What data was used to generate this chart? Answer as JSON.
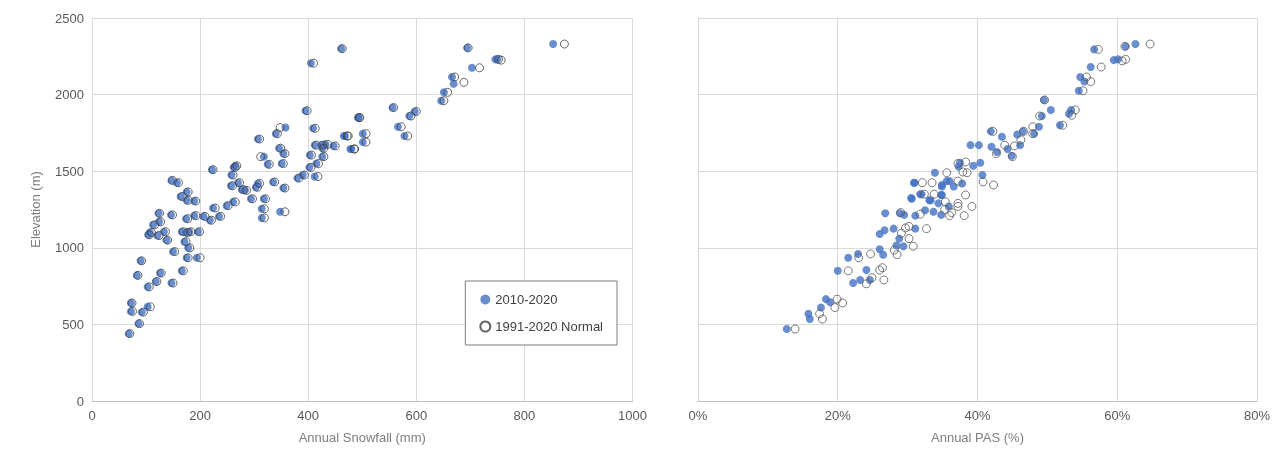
{
  "chart_data": [
    {
      "type": "scatter",
      "xlabel": "Annual Snowfall (mm)",
      "ylabel": "Elevation (m)",
      "xlim": [
        0,
        1000
      ],
      "xticks": [
        0,
        200,
        400,
        600,
        800,
        1000
      ],
      "ylim": [
        0,
        2500
      ],
      "yticks": [
        0,
        500,
        1000,
        1500,
        2000,
        2500
      ],
      "grid": true,
      "legend": "bottom right",
      "marker": "circle",
      "series": [
        {
          "name": "2010-2020",
          "color": "#4472c4",
          "x": [
            68,
            72,
            72,
            86,
            92,
            103,
            83,
            90,
            103,
            118,
            126,
            147,
            166,
            150,
            175,
            194,
            104,
            107,
            113,
            123,
            124,
            121,
            133,
            138,
            146,
            147,
            157,
            164,
            175,
            175,
            189,
            174,
            166,
            174,
            180,
            171,
            178,
            196,
            189,
            206,
            218,
            222,
            235,
            224,
            249,
            261,
            257,
            258,
            262,
            265,
            270,
            277,
            283,
            294,
            303,
            307,
            307,
            318,
            325,
            314,
            314,
            318,
            340,
            358,
            346,
            354,
            351,
            335,
            354,
            348,
            395,
            380,
            390,
            402,
            403,
            409,
            412,
            424,
            412,
            426,
            426,
            415,
            432,
            468,
            480,
            492,
            461,
            405,
            556,
            587,
            597,
            566,
            578,
            493,
            466,
            501,
            501,
            478,
            447,
            646,
            651,
            666,
            669,
            703,
            694,
            746,
            750,
            853
          ],
          "values": [
            440,
            640,
            585,
            505,
            580,
            615,
            820,
            915,
            745,
            780,
            835,
            770,
            850,
            975,
            935,
            935,
            1085,
            1100,
            1150,
            1225,
            1170,
            1080,
            1105,
            1050,
            1215,
            1440,
            1425,
            1335,
            1365,
            1310,
            1305,
            1190,
            1105,
            1100,
            1105,
            1040,
            1000,
            1105,
            1210,
            1205,
            1180,
            1510,
            1205,
            1260,
            1275,
            1300,
            1405,
            1475,
            1525,
            1535,
            1425,
            1380,
            1375,
            1320,
            1395,
            1420,
            1710,
            1595,
            1545,
            1255,
            1195,
            1320,
            1745,
            1785,
            1650,
            1615,
            1550,
            1430,
            1390,
            1235,
            1895,
            1455,
            1475,
            1525,
            1605,
            1780,
            1670,
            1670,
            1465,
            1650,
            1595,
            1550,
            1675,
            1730,
            1645,
            1850,
            2300,
            2205,
            1915,
            1860,
            1890,
            1790,
            1730,
            1850,
            1730,
            1745,
            1690,
            1645,
            1665,
            1960,
            2015,
            2115,
            2070,
            2175,
            2305,
            2230,
            2230,
            2330
          ]
        },
        {
          "name": "1991-2020 Normal",
          "color": "#404040",
          "x": [
            70,
            74,
            75,
            88,
            95,
            108,
            85,
            92,
            106,
            120,
            128,
            150,
            169,
            153,
            178,
            200,
            106,
            110,
            116,
            125,
            127,
            124,
            136,
            140,
            149,
            149,
            160,
            167,
            178,
            178,
            192,
            177,
            169,
            177,
            183,
            174,
            181,
            199,
            192,
            209,
            221,
            224,
            238,
            228,
            252,
            265,
            260,
            261,
            265,
            268,
            273,
            280,
            286,
            297,
            306,
            310,
            310,
            312,
            328,
            319,
            319,
            321,
            343,
            348,
            349,
            357,
            354,
            338,
            357,
            357,
            398,
            383,
            393,
            405,
            406,
            413,
            415,
            427,
            418,
            429,
            429,
            419,
            436,
            474,
            486,
            495,
            463,
            410,
            558,
            590,
            600,
            572,
            584,
            495,
            472,
            507,
            507,
            485,
            450,
            651,
            658,
            671,
            688,
            717,
            696,
            757,
            752,
            874
          ],
          "values": [
            440,
            640,
            585,
            505,
            580,
            615,
            820,
            915,
            745,
            780,
            835,
            770,
            850,
            975,
            935,
            935,
            1085,
            1100,
            1150,
            1225,
            1170,
            1080,
            1105,
            1050,
            1215,
            1440,
            1425,
            1335,
            1365,
            1310,
            1305,
            1190,
            1105,
            1100,
            1105,
            1040,
            1000,
            1105,
            1210,
            1205,
            1180,
            1510,
            1205,
            1260,
            1275,
            1300,
            1405,
            1475,
            1525,
            1535,
            1425,
            1380,
            1375,
            1320,
            1395,
            1420,
            1710,
            1595,
            1545,
            1255,
            1195,
            1320,
            1745,
            1785,
            1650,
            1615,
            1550,
            1430,
            1390,
            1235,
            1895,
            1455,
            1475,
            1525,
            1605,
            1780,
            1670,
            1670,
            1465,
            1650,
            1595,
            1550,
            1675,
            1730,
            1645,
            1850,
            2300,
            2205,
            1915,
            1860,
            1890,
            1790,
            1730,
            1850,
            1730,
            1745,
            1690,
            1645,
            1665,
            1960,
            2015,
            2115,
            2080,
            2175,
            2305,
            2225,
            2230,
            2330
          ]
        }
      ]
    },
    {
      "type": "scatter",
      "xlabel": "Annual PAS (%)",
      "xlim": [
        0,
        80
      ],
      "xticks": [
        {
          "value": 0,
          "label": "0%"
        },
        {
          "value": 20,
          "label": "20%"
        },
        {
          "value": 40,
          "label": "40%"
        },
        {
          "value": 60,
          "label": "60%"
        },
        {
          "value": 80,
          "label": "80%"
        }
      ],
      "ylim": [
        0,
        2500
      ],
      "yticks": [
        0,
        500,
        1000,
        1500,
        2000,
        2500
      ],
      "tick_labels": "x",
      "grid": true,
      "marker": "circle",
      "series": [
        {
          "color": "#4472c4",
          "x": [
            12.7,
            15.8,
            16.0,
            17.6,
            18.3,
            18.9,
            20.0,
            21.5,
            22.9,
            22.2,
            23.2,
            24.1,
            24.6,
            26.0,
            26.5,
            26.0,
            26.8,
            26.7,
            28.0,
            28.8,
            29.4,
            28.4,
            29.5,
            30.9,
            30.5,
            31.1,
            31.1,
            31.8,
            32.5,
            33.7,
            33.1,
            34.4,
            34.9,
            34.8,
            35.9,
            34.9,
            35.6,
            36.6,
            37.8,
            28.9,
            31.0,
            30.6,
            33.9,
            32.0,
            33.3,
            34.9,
            34.8,
            36.0,
            37.3,
            37.5,
            39.0,
            40.2,
            39.4,
            40.4,
            40.7,
            41.9,
            42.0,
            42.8,
            43.5,
            44.3,
            44.9,
            45.7,
            46.5,
            46.1,
            48.1,
            48.8,
            49.2,
            49.5,
            50.5,
            51.8,
            53.1,
            53.4,
            54.5,
            54.7,
            55.3,
            56.2,
            56.7,
            59.5,
            60.1,
            61.2,
            62.6
          ],
          "values": [
            470,
            570,
            535,
            610,
            665,
            645,
            850,
            935,
            960,
            770,
            790,
            855,
            790,
            990,
            955,
            1090,
            1225,
            1115,
            1125,
            1060,
            1010,
            1015,
            1215,
            1425,
            1325,
            1210,
            1125,
            1350,
            1245,
            1235,
            1310,
            1290,
            1345,
            1215,
            1270,
            1410,
            1435,
            1400,
            1420,
            1225,
            1425,
            1320,
            1490,
            1350,
            1310,
            1400,
            1345,
            1435,
            1530,
            1555,
            1670,
            1670,
            1535,
            1555,
            1475,
            1760,
            1660,
            1625,
            1725,
            1645,
            1600,
            1740,
            1760,
            1670,
            1745,
            1790,
            1860,
            1965,
            1900,
            1800,
            1875,
            1900,
            2025,
            2115,
            2085,
            2180,
            2295,
            2225,
            2230,
            2315,
            2330
          ]
        },
        {
          "color": "#595959",
          "x": [
            13.9,
            17.4,
            17.8,
            19.9,
            20.7,
            19.6,
            21.5,
            23.0,
            24.7,
            24.1,
            24.9,
            26.0,
            26.4,
            26.6,
            28.1,
            28.5,
            30.2,
            30.8,
            29.1,
            29.7,
            30.2,
            32.7,
            29.0,
            31.8,
            33.5,
            33.8,
            35.3,
            36.3,
            37.2,
            38.1,
            39.2,
            38.3,
            40.8,
            42.3,
            42.2,
            43.9,
            45.3,
            46.2,
            45.0,
            42.7,
            46.6,
            47.9,
            47.9,
            48.9,
            49.6,
            52.2,
            53.5,
            54.0,
            55.1,
            55.6,
            56.2,
            57.7,
            57.3,
            60.7,
            61.2,
            61.1,
            64.7,
            37.2,
            37.9,
            38.5,
            37.2,
            38.3,
            35.6,
            32.1,
            32.4,
            36.0,
            37.2,
            35.4
          ],
          "values": [
            470,
            570,
            535,
            665,
            640,
            610,
            850,
            935,
            960,
            765,
            805,
            855,
            870,
            790,
            985,
            955,
            1060,
            1010,
            1095,
            1130,
            1140,
            1125,
            1230,
            1220,
            1425,
            1350,
            1250,
            1230,
            1290,
            1210,
            1270,
            1345,
            1430,
            1410,
            1760,
            1670,
            1665,
            1705,
            1595,
            1615,
            1760,
            1790,
            1745,
            1860,
            1965,
            1800,
            1865,
            1900,
            2025,
            2115,
            2085,
            2180,
            2295,
            2220,
            2230,
            2315,
            2330,
            1435,
            1495,
            1490,
            1550,
            1560,
            1490,
            1425,
            1350,
            1210,
            1270,
            1300
          ]
        }
      ]
    }
  ]
}
